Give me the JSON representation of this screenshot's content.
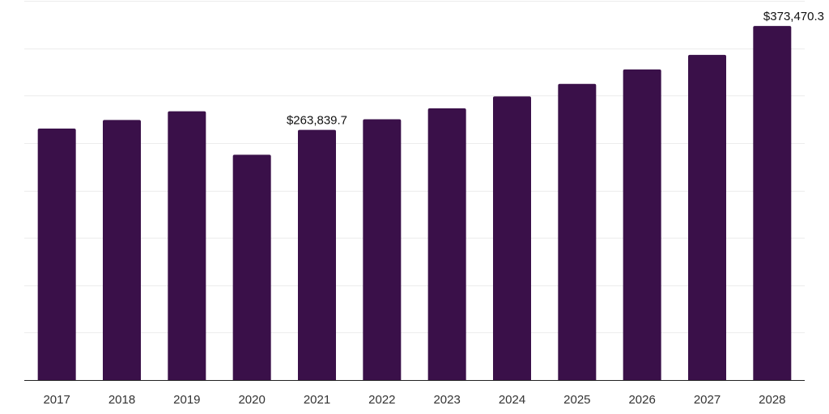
{
  "chart_data": {
    "type": "bar",
    "categories": [
      "2017",
      "2018",
      "2019",
      "2020",
      "2021",
      "2022",
      "2023",
      "2024",
      "2025",
      "2026",
      "2027",
      "2028"
    ],
    "values": [
      265200,
      274300,
      283500,
      237600,
      263839.7,
      275100,
      286600,
      299100,
      312400,
      327600,
      343000,
      373470.3
    ],
    "data_labels": [
      {
        "index": 4,
        "text": "$263,839.7"
      },
      {
        "index": 11,
        "text": "$373,470.3"
      }
    ],
    "ylim": [
      0,
      400000
    ],
    "gridlines": 8,
    "grid": true,
    "xlabel": "",
    "ylabel": "",
    "colors": {
      "bar": "#3a1049",
      "grid": "#ececec",
      "axis": "#222222"
    }
  }
}
